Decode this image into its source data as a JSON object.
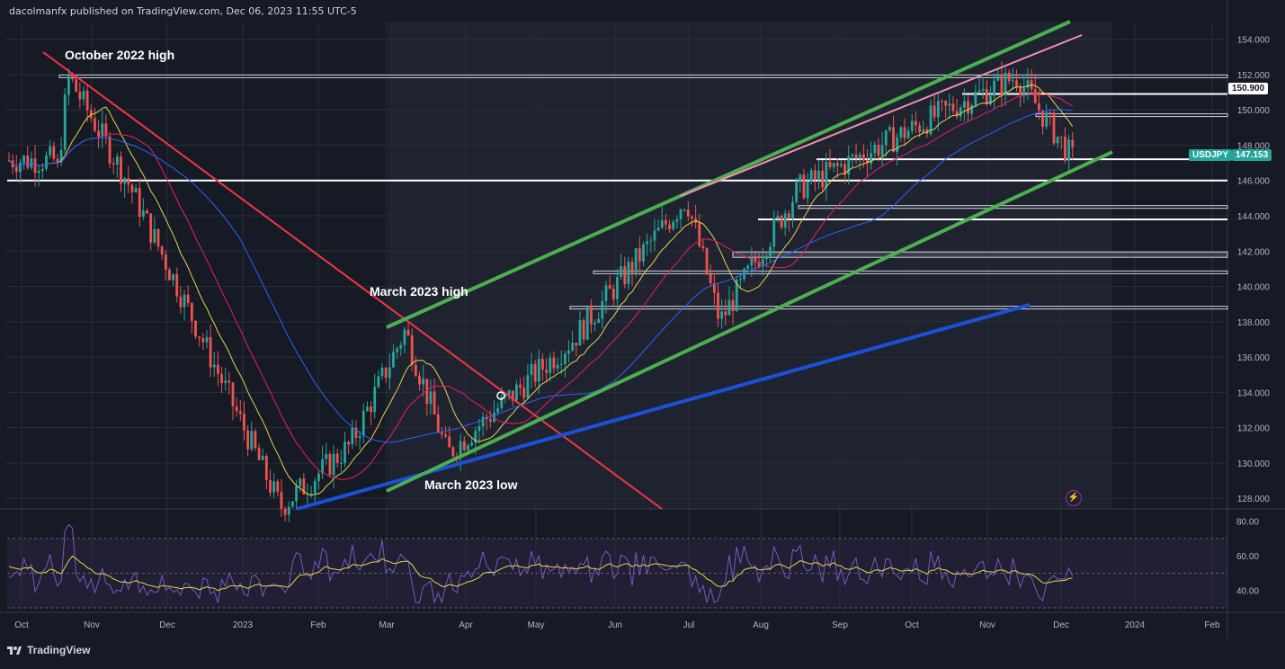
{
  "header": {
    "publisher": "dacolmanfx published on TradingView.com, Dec 06, 2023 11:55 UTC-5"
  },
  "footer": {
    "brand": "TradingView"
  },
  "symbol": {
    "name": "USDJPY",
    "price": "147.153"
  },
  "annotations": {
    "oct_high": "October 2022 high",
    "mar_high": "March 2023 high",
    "mar_low": "March 2023 low"
  },
  "price_tag": {
    "level": "150.900"
  },
  "colors": {
    "bg": "#161a25",
    "up": "#26a69a",
    "down": "#ef5350",
    "grid": "#2a2e39",
    "sma50": "#e6d44a",
    "sma100": "#e91e63",
    "sma200": "#2962ff",
    "channel": "#4caf50",
    "downtrend": "#f23645",
    "uptrend": "#1e4fd8",
    "pink_line": "#f48fb1",
    "rsi": "#7e57c2",
    "rsi_ma": "#e6d44a"
  },
  "chart_data": [
    {
      "type": "candlestick",
      "symbol": "USDJPY",
      "x_axis_labels": [
        "Oct",
        "Nov",
        "Dec",
        "2023",
        "Feb",
        "Mar",
        "Apr",
        "May",
        "Jun",
        "Jul",
        "Aug",
        "Sep",
        "Oct",
        "Nov",
        "Dec",
        "2024",
        "Feb"
      ],
      "y_axis_labels": [
        "154.000",
        "152.000",
        "150.000",
        "148.000",
        "146.000",
        "144.000",
        "142.000",
        "140.000",
        "138.000",
        "136.000",
        "134.000",
        "132.000",
        "130.000",
        "128.000"
      ],
      "ylim": [
        127.4,
        155.0
      ],
      "key_points": [
        {
          "date": "2022-10",
          "close": 145.0
        },
        {
          "date": "2022-10-21",
          "close": 151.9
        },
        {
          "date": "2022-11",
          "close": 146.0
        },
        {
          "date": "2022-12",
          "close": 137.0
        },
        {
          "date": "2023-01-16",
          "close": 127.5
        },
        {
          "date": "2023-02",
          "close": 131.0
        },
        {
          "date": "2023-03-08",
          "close": 137.5
        },
        {
          "date": "2023-03-24",
          "close": 130.5
        },
        {
          "date": "2023-05",
          "close": 137.0
        },
        {
          "date": "2023-06-30",
          "close": 145.0
        },
        {
          "date": "2023-07-14",
          "close": 138.0
        },
        {
          "date": "2023-08",
          "close": 145.5
        },
        {
          "date": "2023-10",
          "close": 150.0
        },
        {
          "date": "2023-11-13",
          "close": 151.9
        },
        {
          "date": "2023-12-06",
          "close": 147.153
        }
      ],
      "indicators": [
        "SMA 50",
        "SMA 100",
        "SMA 200"
      ],
      "horizontal_levels": [
        151.9,
        150.9,
        149.7,
        147.2,
        146.0,
        144.5,
        143.8,
        141.8,
        140.8,
        138.8
      ]
    },
    {
      "type": "line",
      "name": "RSI",
      "y_axis_labels": [
        "80.00",
        "60.00",
        "40.00"
      ],
      "ylim": [
        30,
        85
      ],
      "band": [
        30,
        70
      ]
    }
  ]
}
